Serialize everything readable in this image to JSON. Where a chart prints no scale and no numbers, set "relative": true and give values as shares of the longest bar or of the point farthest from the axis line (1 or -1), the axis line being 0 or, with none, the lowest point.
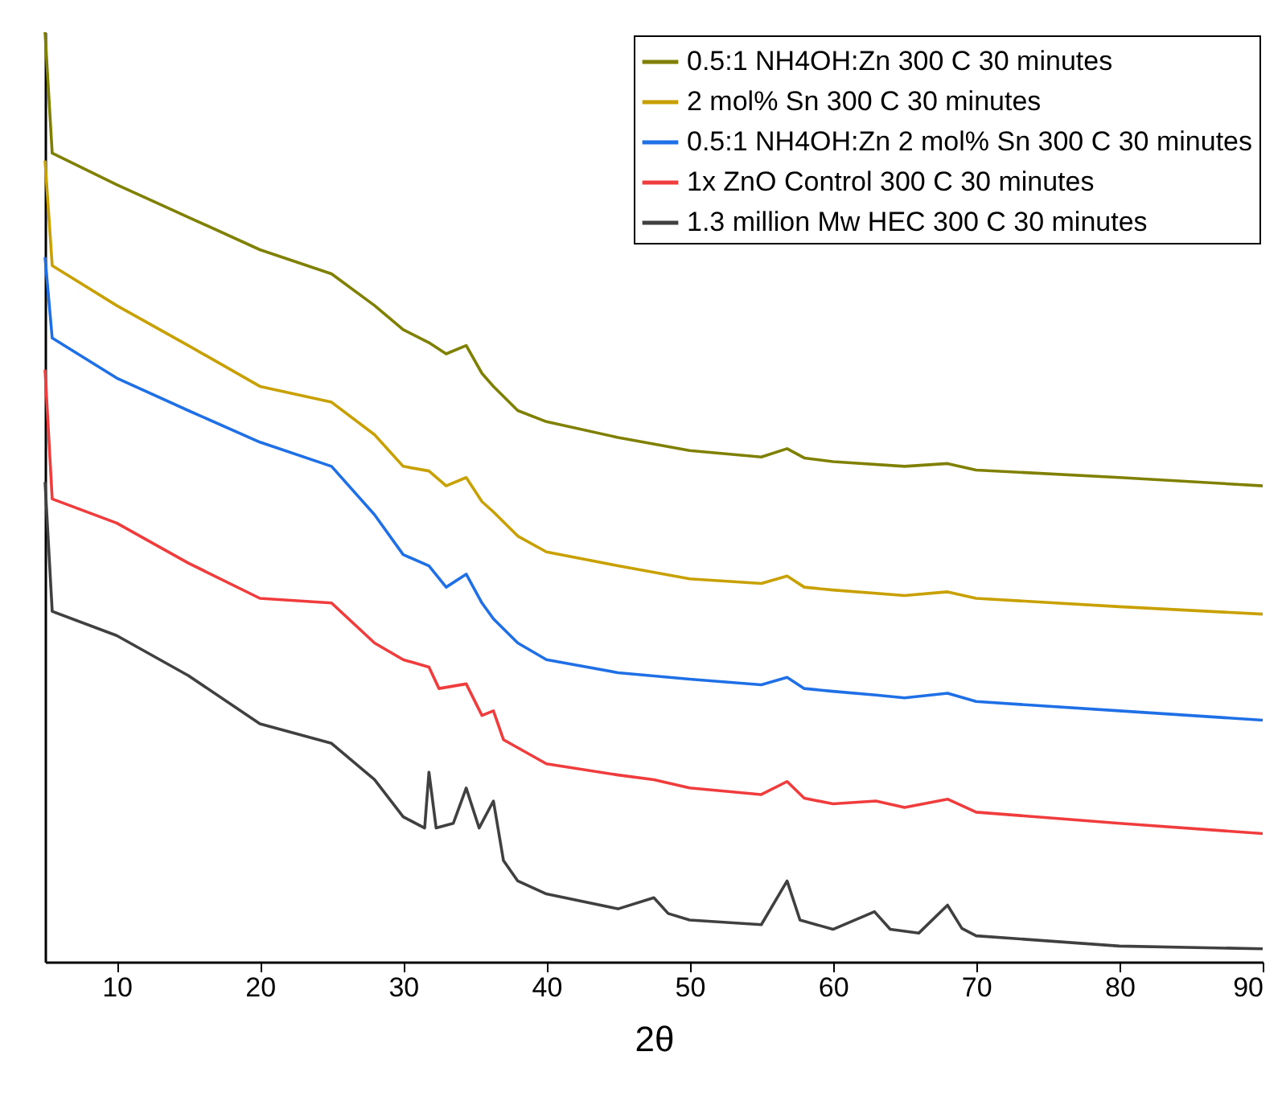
{
  "chart_data": {
    "type": "line",
    "relative": true,
    "xlabel": "2θ",
    "xlim": [
      5,
      90
    ],
    "xticks": [
      10,
      20,
      30,
      40,
      50,
      60,
      70,
      80,
      90
    ],
    "legend": "top right",
    "grid": false,
    "marker": "none",
    "line_style": "solid",
    "tick_labels": "x",
    "series": [
      {
        "name": "0.5:1 NH4OH:Zn 300 C 30 minutes",
        "color": "#808000",
        "x": [
          5,
          5.5,
          10,
          15,
          20,
          25,
          28,
          30,
          31.8,
          33,
          34.4,
          35.5,
          36.3,
          38,
          40,
          45,
          50,
          55,
          56.8,
          58,
          60,
          65,
          68,
          70,
          80,
          90
        ],
        "values": [
          1.0,
          0.87,
          0.836,
          0.801,
          0.766,
          0.74,
          0.706,
          0.68,
          0.666,
          0.654,
          0.663,
          0.633,
          0.619,
          0.593,
          0.581,
          0.564,
          0.55,
          0.543,
          0.552,
          0.542,
          0.538,
          0.533,
          0.536,
          0.529,
          0.521,
          0.512
        ]
      },
      {
        "name": "2 mol% Sn 300 C 30 minutes",
        "color": "#c8a000",
        "x": [
          5,
          5.5,
          10,
          15,
          20,
          25,
          28,
          30,
          31.8,
          33,
          34.4,
          35.5,
          36.3,
          38,
          40,
          45,
          50,
          55,
          56.8,
          58,
          60,
          65,
          68,
          70,
          80,
          90
        ],
        "values": [
          0.862,
          0.749,
          0.706,
          0.663,
          0.619,
          0.602,
          0.567,
          0.533,
          0.528,
          0.512,
          0.521,
          0.495,
          0.484,
          0.458,
          0.441,
          0.426,
          0.412,
          0.407,
          0.415,
          0.403,
          0.4,
          0.394,
          0.398,
          0.391,
          0.382,
          0.374
        ]
      },
      {
        "name": "0.5:1 NH4OH:Zn 2 mol% Sn 300 C 30 minutes",
        "color": "#1f6fe6",
        "x": [
          5,
          5.5,
          10,
          15,
          20,
          25,
          28,
          30,
          31.8,
          33,
          34.4,
          35.5,
          36.3,
          38,
          40,
          45,
          50,
          55,
          56.8,
          58,
          60,
          63,
          65,
          68,
          70,
          80,
          90
        ],
        "values": [
          0.758,
          0.671,
          0.628,
          0.593,
          0.559,
          0.533,
          0.481,
          0.438,
          0.426,
          0.403,
          0.417,
          0.386,
          0.369,
          0.343,
          0.325,
          0.311,
          0.304,
          0.298,
          0.306,
          0.294,
          0.291,
          0.287,
          0.284,
          0.289,
          0.28,
          0.27,
          0.26
        ]
      },
      {
        "name": "1x ZnO Control 300 C 30 minutes",
        "color": "#f03c3c",
        "x": [
          5,
          5.5,
          10,
          15,
          20,
          25,
          28,
          30,
          31.8,
          32.5,
          34.4,
          35.5,
          36.3,
          37,
          40,
          45,
          47.5,
          50,
          55,
          56.8,
          58,
          60,
          63,
          65,
          68,
          70,
          80,
          90
        ],
        "values": [
          0.637,
          0.498,
          0.472,
          0.429,
          0.391,
          0.386,
          0.343,
          0.325,
          0.317,
          0.294,
          0.299,
          0.265,
          0.27,
          0.239,
          0.213,
          0.201,
          0.196,
          0.187,
          0.18,
          0.194,
          0.176,
          0.17,
          0.173,
          0.166,
          0.175,
          0.161,
          0.149,
          0.138
        ]
      },
      {
        "name": "1.3 million Mw HEC 300 C 30 minutes",
        "color": "#404040",
        "x": [
          5,
          5.5,
          10,
          15,
          20,
          25,
          28,
          30,
          31.5,
          31.8,
          32.3,
          33.5,
          34.4,
          35.3,
          36.3,
          37,
          38,
          40,
          45,
          47.5,
          48.5,
          50,
          55,
          56.8,
          57.7,
          60,
          62.9,
          64,
          66,
          68,
          69,
          70,
          80,
          90
        ],
        "values": [
          0.516,
          0.377,
          0.351,
          0.308,
          0.256,
          0.235,
          0.196,
          0.156,
          0.144,
          0.204,
          0.144,
          0.149,
          0.187,
          0.144,
          0.173,
          0.109,
          0.087,
          0.073,
          0.057,
          0.069,
          0.052,
          0.045,
          0.04,
          0.087,
          0.045,
          0.035,
          0.054,
          0.035,
          0.031,
          0.061,
          0.036,
          0.028,
          0.017,
          0.014
        ]
      }
    ]
  }
}
